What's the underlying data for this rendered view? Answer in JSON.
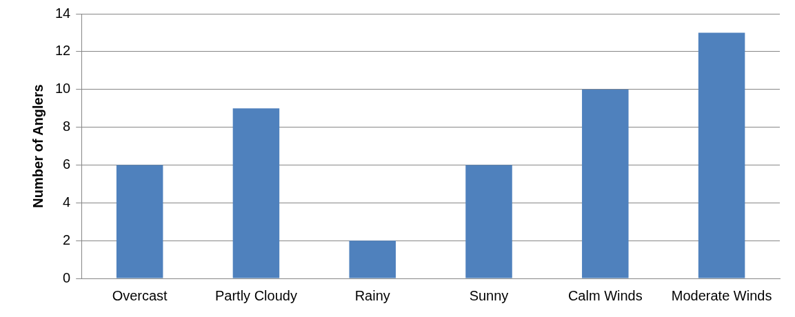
{
  "chart_data": {
    "type": "bar",
    "ylabel": "Number of Anglers",
    "categories": [
      "Overcast",
      "Partly Cloudy",
      "Rainy",
      "Sunny",
      "Calm Winds",
      "Moderate Winds"
    ],
    "values": [
      6,
      9,
      2,
      6,
      10,
      13
    ],
    "color": "#4f81bd",
    "ylim": [
      0,
      14
    ],
    "yticks": [
      0,
      2,
      4,
      6,
      8,
      10,
      12,
      14
    ],
    "grid": "y",
    "legend": false
  }
}
